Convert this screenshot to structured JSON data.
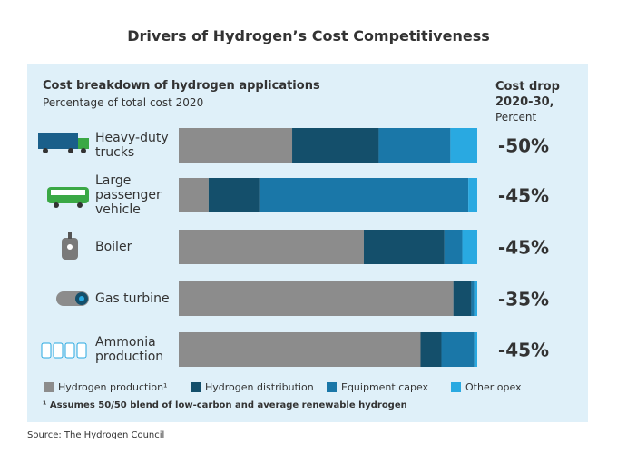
{
  "chart_data": {
    "type": "bar",
    "orientation": "horizontal",
    "stacked": true,
    "title": "Drivers of Hydrogen’s Cost Competitiveness",
    "heading": "Cost breakdown of hydrogen applications",
    "subtitle": "Percentage of total cost 2020",
    "categories": [
      "Heavy-duty trucks",
      "Large passenger vehicle",
      "Boiler",
      "Gas turbine",
      "Ammonia production"
    ],
    "xlim": [
      0,
      100
    ],
    "series": [
      {
        "name": "Hydrogen production¹",
        "color": "#8c8c8c",
        "values": [
          38,
          10,
          62,
          92,
          81
        ]
      },
      {
        "name": "Hydrogen distribution",
        "color": "#144f6b",
        "values": [
          29,
          17,
          27,
          6,
          7
        ]
      },
      {
        "name": "Equipment capex",
        "color": "#1a77a8",
        "values": [
          24,
          70,
          6,
          1,
          11
        ]
      },
      {
        "name": "Other opex",
        "color": "#29a9e1",
        "values": [
          9,
          3,
          5,
          1,
          1
        ]
      }
    ],
    "cost_drop": {
      "title": "Cost drop 2020-30,",
      "subtitle": "Percent",
      "values": [
        -50,
        -45,
        -45,
        -35,
        -45
      ],
      "value_labels": [
        "-50%",
        "-45%",
        "-45%",
        "-35%",
        "-45%"
      ]
    },
    "footnote": "¹ Assumes 50/50 blend of low-carbon and average renewable hydrogen",
    "source": "Source: The Hydrogen Council"
  }
}
